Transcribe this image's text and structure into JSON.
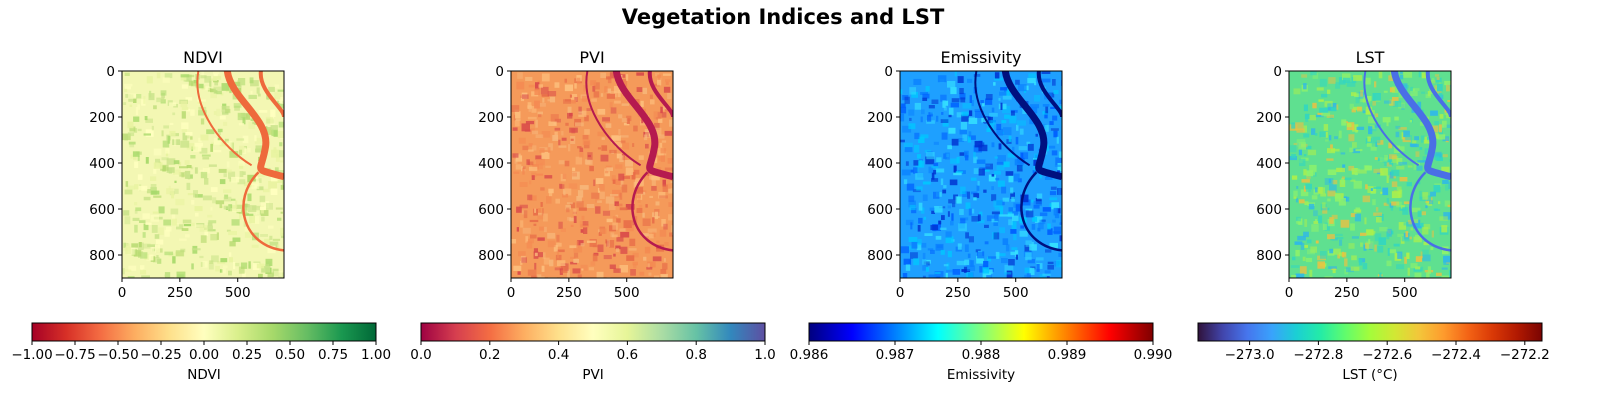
{
  "figure": {
    "title": "Vegetation Indices and LST"
  },
  "chart_data": [
    {
      "type": "heatmap",
      "title": "NDVI",
      "colormap": "RdYlGn",
      "image_width": 700,
      "image_height": 900,
      "x_ticks": [
        "0",
        "250",
        "500"
      ],
      "y_ticks": [
        "0",
        "200",
        "400",
        "600",
        "800"
      ],
      "colorbar": {
        "label": "NDVI",
        "range": [
          -1.0,
          1.0
        ],
        "ticks": [
          "−1.00",
          "−0.75",
          "−0.50",
          "−0.25",
          "0.00",
          "0.25",
          "0.50",
          "0.75",
          "1.00"
        ]
      }
    },
    {
      "type": "heatmap",
      "title": "PVI",
      "colormap": "Spectral",
      "image_width": 700,
      "image_height": 900,
      "x_ticks": [
        "0",
        "250",
        "500"
      ],
      "y_ticks": [
        "0",
        "200",
        "400",
        "600",
        "800"
      ],
      "colorbar": {
        "label": "PVI",
        "range": [
          0.0,
          1.0
        ],
        "ticks": [
          "0.0",
          "0.2",
          "0.4",
          "0.6",
          "0.8",
          "1.0"
        ]
      }
    },
    {
      "type": "heatmap",
      "title": "Emissivity",
      "colormap": "jet",
      "image_width": 700,
      "image_height": 900,
      "x_ticks": [
        "0",
        "250",
        "500"
      ],
      "y_ticks": [
        "0",
        "200",
        "400",
        "600",
        "800"
      ],
      "colorbar": {
        "label": "Emissivity",
        "range": [
          0.986,
          0.99
        ],
        "ticks": [
          "0.986",
          "0.987",
          "0.988",
          "0.989",
          "0.990"
        ]
      }
    },
    {
      "type": "heatmap",
      "title": "LST",
      "colormap": "turbo",
      "image_width": 700,
      "image_height": 900,
      "x_ticks": [
        "0",
        "250",
        "500"
      ],
      "y_ticks": [
        "0",
        "200",
        "400",
        "600",
        "800"
      ],
      "colorbar": {
        "label": "LST (°C)",
        "range": [
          -273.15,
          -272.15
        ],
        "ticks": [
          "−273.0",
          "−272.8",
          "−272.6",
          "−272.4",
          "−272.2"
        ]
      }
    }
  ]
}
